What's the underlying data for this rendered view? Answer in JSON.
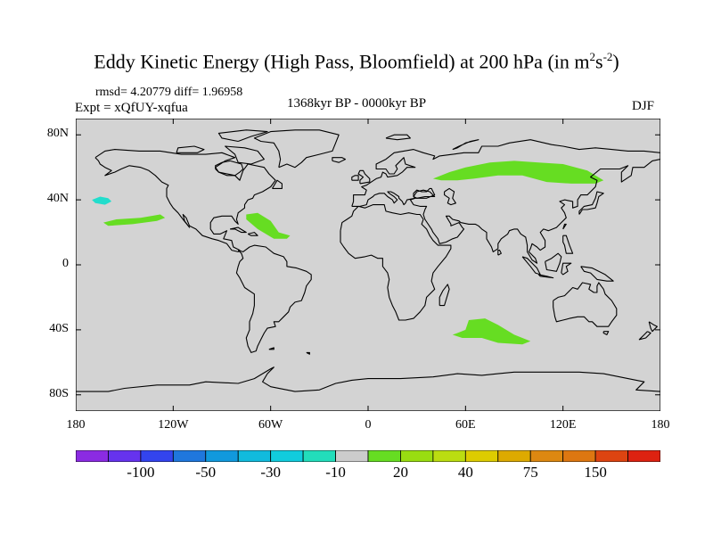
{
  "figure": {
    "title_main": "Eddy Kinetic Energy (High Pass, Bloomfield) at 200 hPa (in m",
    "title_sup1": "2",
    "title_mid": "s",
    "title_sup2": "-2",
    "title_end": ")",
    "stats": "rmsd= 4.20779  diff= 1.96958",
    "experiment": "Expt = xQfUY-xqfua",
    "period": "1368kyr BP - 0000kyr BP",
    "season": "DJF"
  },
  "colors": {
    "land_background": "#d3d3d3",
    "coastline": "#000000",
    "green_anomaly": "#66dd22",
    "cyan_anomaly": "#22ddcc"
  },
  "chart_data": {
    "type": "filled-contour-map",
    "projection": "cylindrical-equidistant",
    "lon_range": [
      -180,
      180
    ],
    "lat_range": [
      -90,
      90
    ],
    "x_ticks": [
      {
        "lon": -180,
        "label": "180"
      },
      {
        "lon": -120,
        "label": "120W"
      },
      {
        "lon": -60,
        "label": "60W"
      },
      {
        "lon": 0,
        "label": "0"
      },
      {
        "lon": 60,
        "label": "60E"
      },
      {
        "lon": 120,
        "label": "120E"
      },
      {
        "lon": 180,
        "label": "180"
      }
    ],
    "y_ticks": [
      {
        "lat": 80,
        "label": "80N"
      },
      {
        "lat": 40,
        "label": "40N"
      },
      {
        "lat": 0,
        "label": "0"
      },
      {
        "lat": -40,
        "label": "40S"
      },
      {
        "lat": -80,
        "label": "80S"
      }
    ],
    "anomaly_regions": [
      {
        "name": "eurasia-positive",
        "category": "20",
        "color": "#66dd22",
        "polygon": [
          [
            40,
            53
          ],
          [
            50,
            57
          ],
          [
            60,
            60
          ],
          [
            75,
            63
          ],
          [
            90,
            64
          ],
          [
            105,
            63
          ],
          [
            120,
            62
          ],
          [
            135,
            58
          ],
          [
            145,
            52
          ],
          [
            140,
            50
          ],
          [
            125,
            50
          ],
          [
            110,
            51
          ],
          [
            95,
            55
          ],
          [
            80,
            55
          ],
          [
            65,
            53
          ],
          [
            55,
            52
          ],
          [
            45,
            52
          ]
        ]
      },
      {
        "name": "north-pacific-positive",
        "category": "20",
        "color": "#66dd22",
        "polygon": [
          [
            -163,
            26
          ],
          [
            -155,
            28
          ],
          [
            -140,
            29
          ],
          [
            -128,
            31
          ],
          [
            -125,
            29
          ],
          [
            -130,
            27
          ],
          [
            -145,
            25
          ],
          [
            -160,
            24
          ]
        ]
      },
      {
        "name": "north-atlantic-positive",
        "category": "20",
        "color": "#66dd22",
        "polygon": [
          [
            -75,
            31
          ],
          [
            -68,
            32
          ],
          [
            -60,
            27
          ],
          [
            -55,
            20
          ],
          [
            -48,
            18
          ],
          [
            -50,
            16
          ],
          [
            -58,
            16
          ],
          [
            -68,
            22
          ],
          [
            -75,
            28
          ]
        ]
      },
      {
        "name": "indian-ocean-positive",
        "category": "20",
        "color": "#66dd22",
        "polygon": [
          [
            55,
            -42
          ],
          [
            60,
            -40
          ],
          [
            62,
            -34
          ],
          [
            72,
            -33
          ],
          [
            80,
            -37
          ],
          [
            90,
            -43
          ],
          [
            100,
            -47
          ],
          [
            95,
            -49
          ],
          [
            80,
            -48
          ],
          [
            70,
            -45
          ],
          [
            58,
            -45
          ],
          [
            52,
            -43
          ]
        ]
      },
      {
        "name": "north-pacific-negative",
        "category": "-10",
        "color": "#22ddcc",
        "polygon": [
          [
            -170,
            40
          ],
          [
            -165,
            42
          ],
          [
            -160,
            41
          ],
          [
            -158,
            39
          ],
          [
            -162,
            37
          ],
          [
            -168,
            38
          ]
        ]
      }
    ]
  },
  "colorbar": {
    "colors": [
      "#8b2be2",
      "#6633ee",
      "#3344ee",
      "#1f77dd",
      "#1199dd",
      "#11bbdd",
      "#11ccdd",
      "#22ddbb",
      "#cccccc",
      "#66dd22",
      "#99dd11",
      "#bbdd11",
      "#ddcc00",
      "#ddaa00",
      "#dd8811",
      "#dd7711",
      "#dd4411",
      "#dd2211"
    ],
    "labels": [
      {
        "boundary": 2,
        "text": "-100"
      },
      {
        "boundary": 4,
        "text": "-50"
      },
      {
        "boundary": 6,
        "text": "-30"
      },
      {
        "boundary": 8,
        "text": "-10"
      },
      {
        "boundary": 10,
        "text": "20"
      },
      {
        "boundary": 12,
        "text": "40"
      },
      {
        "boundary": 14,
        "text": "75"
      },
      {
        "boundary": 16,
        "text": "150"
      }
    ]
  }
}
